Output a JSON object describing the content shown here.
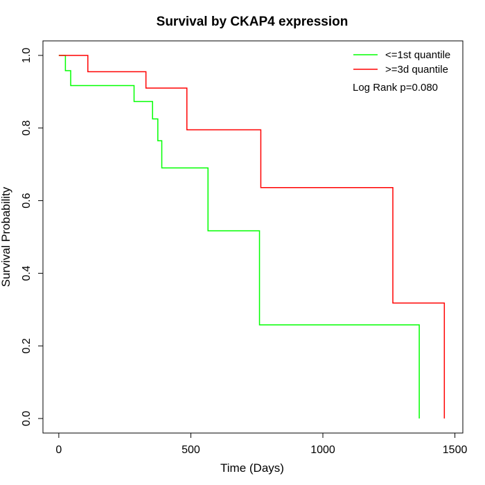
{
  "chart_data": {
    "type": "line",
    "title": "Survival by CKAP4 expression",
    "xlabel": "Time (Days)",
    "ylabel": "Survival Probability",
    "xlim": [
      -60,
      1530
    ],
    "ylim": [
      -0.04,
      1.04
    ],
    "xticks": [
      0,
      500,
      1000,
      1500
    ],
    "yticks": [
      0.0,
      0.2,
      0.4,
      0.6,
      0.8,
      1.0
    ],
    "xtick_labels": [
      "0",
      "500",
      "1000",
      "1500"
    ],
    "ytick_labels": [
      "0.0",
      "0.2",
      "0.4",
      "0.6",
      "0.8",
      "1.0"
    ],
    "grid": false,
    "legend_position": "top-right",
    "annotation": "Log Rank p=0.080",
    "series": [
      {
        "name": "<=1st quantile",
        "color": "#00ff00",
        "step": true,
        "x": [
          0,
          25,
          45,
          285,
          355,
          375,
          390,
          565,
          760,
          1365,
          1365
        ],
        "y": [
          1.0,
          0.958,
          0.917,
          0.873,
          0.825,
          0.765,
          0.69,
          0.517,
          0.258,
          0.258,
          0.0
        ]
      },
      {
        "name": ">=3d quantile",
        "color": "#ff0000",
        "step": true,
        "x": [
          0,
          110,
          330,
          485,
          765,
          1265,
          1460,
          1460
        ],
        "y": [
          1.0,
          0.955,
          0.91,
          0.795,
          0.636,
          0.318,
          0.318,
          0.0
        ]
      }
    ]
  }
}
